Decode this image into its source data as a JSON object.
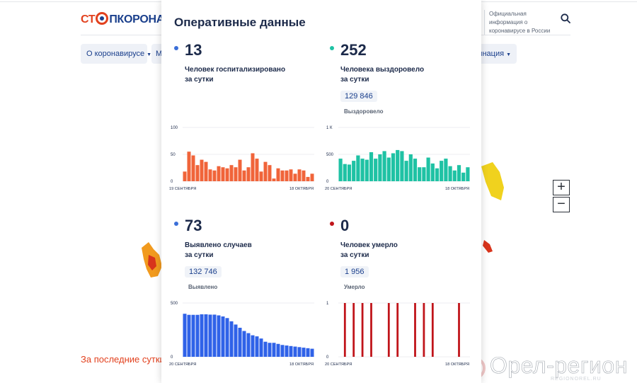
{
  "header": {
    "logo_left": "СТ",
    "logo_right": "ПКОРОНАВИ",
    "official_info": "Официальная информация о коронавирусе в России",
    "search_icon": "search-icon"
  },
  "nav": [
    {
      "label": "О коронавирусе"
    },
    {
      "label": "М"
    },
    {
      "label": "цинация"
    }
  ],
  "map_controls": {
    "zoom_in": "+",
    "zoom_out": "−"
  },
  "footer": {
    "last_day_title": "За последние сутки"
  },
  "watermark": {
    "brand": "Орел-регион",
    "domain": "REGIONOREL.RU"
  },
  "panel": {
    "title": "Оперативные данные",
    "stats": [
      {
        "value": "13",
        "description": "Человек госпитализировано\nза сутки",
        "total": "",
        "total_label": "",
        "color": "#3b6fd8"
      },
      {
        "value": "252",
        "description": "Человека выздоровело\nза сутки",
        "total": "129 846",
        "total_label": "Выздоровело",
        "color": "#1fc2a4"
      },
      {
        "value": "73",
        "description": "Выявлено случаев\nза сутки",
        "total": "132 746",
        "total_label": "Выявлено",
        "color": "#3b6fd8"
      },
      {
        "value": "0",
        "description": "Человек умерло\nза сутки",
        "total": "1 956",
        "total_label": "Умерло",
        "color": "#c0141a"
      }
    ]
  },
  "chart_data": [
    {
      "type": "bar",
      "color": "#f0643a",
      "y_ticks": [
        "100",
        "50",
        "0"
      ],
      "ylim": [
        0,
        100
      ],
      "x_start_label": "19 СЕНТЯБРЯ",
      "x_end_label": "18 ОКТЯБРЯ",
      "values": [
        18,
        55,
        48,
        30,
        40,
        36,
        22,
        20,
        28,
        26,
        24,
        30,
        26,
        40,
        20,
        26,
        52,
        42,
        18,
        36,
        30,
        5,
        24,
        20,
        20,
        22,
        14,
        22,
        20,
        8,
        14
      ]
    },
    {
      "type": "bar",
      "color": "#1fc2a4",
      "y_ticks": [
        "1 К",
        "500",
        "0"
      ],
      "ylim": [
        0,
        1000
      ],
      "x_start_label": "20 СЕНТЯБРЯ",
      "x_end_label": "18 ОКТЯБРЯ",
      "values": [
        420,
        320,
        310,
        380,
        480,
        420,
        400,
        540,
        420,
        500,
        560,
        440,
        520,
        580,
        560,
        380,
        500,
        420,
        260,
        260,
        440,
        330,
        240,
        380,
        420,
        280,
        200,
        300,
        160,
        260
      ]
    },
    {
      "type": "bar",
      "color": "#2f62e8",
      "y_ticks": [
        "500",
        "0"
      ],
      "ylim": [
        0,
        500
      ],
      "x_start_label": "20 СЕНТЯБРЯ",
      "x_end_label": "18 ОКТЯБРЯ",
      "values": [
        400,
        390,
        390,
        390,
        395,
        395,
        392,
        392,
        385,
        375,
        360,
        330,
        300,
        270,
        240,
        220,
        200,
        190,
        170,
        140,
        130,
        130,
        120,
        110,
        105,
        100,
        95,
        90,
        85,
        80,
        75
      ]
    },
    {
      "type": "bar",
      "color": "#c0141a",
      "y_ticks": [
        "1",
        "0"
      ],
      "ylim": [
        0,
        1
      ],
      "x_start_label": "20 СЕНТЯБРЯ",
      "x_end_label": "18 ОКТЯБРЯ",
      "values": [
        0,
        1,
        0,
        1,
        0,
        1,
        0,
        1,
        0,
        0,
        0,
        1,
        0,
        1,
        0,
        0,
        0,
        1,
        0,
        1,
        0,
        1,
        0,
        0,
        0,
        0,
        0,
        1,
        0,
        0
      ]
    }
  ]
}
